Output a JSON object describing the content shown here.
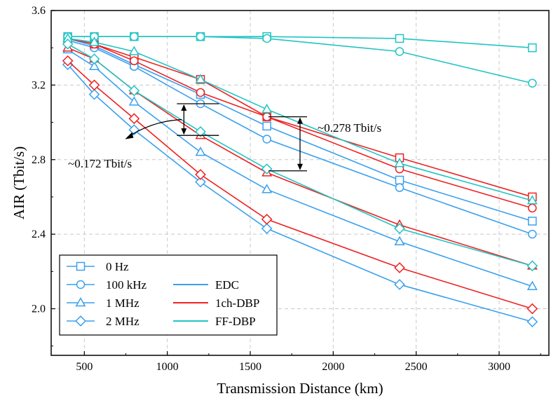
{
  "chart_data": {
    "type": "line",
    "xlabel": "Transmission Distance (km)",
    "ylabel": "AIR (Tbit/s)",
    "xlim": [
      300,
      3300
    ],
    "ylim": [
      1.75,
      3.6
    ],
    "xticks": [
      500,
      1000,
      1500,
      2000,
      2500,
      3000
    ],
    "yticks": [
      2.0,
      2.4,
      2.8,
      3.2,
      3.6
    ],
    "xtick_labels": [
      "500",
      "1000",
      "1500",
      "2000",
      "2500",
      "3000"
    ],
    "ytick_labels": [
      "2.0",
      "2.4",
      "2.8",
      "3.2",
      "3.6"
    ],
    "grid": true,
    "x": [
      400,
      560,
      800,
      1200,
      1600,
      2400,
      3200
    ],
    "colors": {
      "EDC": "#3aa0ee",
      "1ch-DBP": "#ee2222",
      "FF-DBP": "#22c4c4"
    },
    "series": [
      {
        "linewidth": "EDC",
        "marker": "0 Hz",
        "values": [
          3.45,
          3.41,
          3.31,
          3.15,
          2.98,
          2.69,
          2.47
        ]
      },
      {
        "linewidth": "EDC",
        "marker": "100 kHz",
        "values": [
          3.44,
          3.4,
          3.3,
          3.1,
          2.91,
          2.65,
          2.4
        ]
      },
      {
        "linewidth": "EDC",
        "marker": "1 MHz",
        "values": [
          3.39,
          3.3,
          3.11,
          2.84,
          2.64,
          2.36,
          2.12
        ]
      },
      {
        "linewidth": "EDC",
        "marker": "2 MHz",
        "values": [
          3.31,
          3.15,
          2.96,
          2.68,
          2.43,
          2.13,
          1.93
        ]
      },
      {
        "linewidth": "1ch-DBP",
        "marker": "0 Hz",
        "values": [
          3.45,
          3.42,
          3.35,
          3.23,
          3.03,
          2.81,
          2.6
        ]
      },
      {
        "linewidth": "1ch-DBP",
        "marker": "100 kHz",
        "values": [
          3.45,
          3.42,
          3.33,
          3.16,
          3.03,
          2.75,
          2.54
        ]
      },
      {
        "linewidth": "1ch-DBP",
        "marker": "1 MHz",
        "values": [
          3.4,
          3.34,
          3.17,
          2.93,
          2.73,
          2.45,
          2.23
        ]
      },
      {
        "linewidth": "1ch-DBP",
        "marker": "2 MHz",
        "values": [
          3.33,
          3.2,
          3.02,
          2.72,
          2.48,
          2.22,
          2.0
        ]
      },
      {
        "linewidth": "FF-DBP",
        "marker": "0 Hz",
        "values": [
          3.46,
          3.46,
          3.46,
          3.46,
          3.46,
          3.45,
          3.4
        ]
      },
      {
        "linewidth": "FF-DBP",
        "marker": "100 kHz",
        "values": [
          3.46,
          3.46,
          3.46,
          3.46,
          3.45,
          3.38,
          3.21
        ]
      },
      {
        "linewidth": "FF-DBP",
        "marker": "1 MHz",
        "values": [
          3.45,
          3.43,
          3.38,
          3.23,
          3.07,
          2.78,
          2.58
        ]
      },
      {
        "linewidth": "FF-DBP",
        "marker": "2 MHz",
        "values": [
          3.42,
          3.34,
          3.17,
          2.95,
          2.75,
          2.43,
          2.23
        ]
      }
    ],
    "legend": {
      "placement": "bottom-left",
      "markers": [
        {
          "label": "0 Hz",
          "shape": "square"
        },
        {
          "label": "100 kHz",
          "shape": "circle"
        },
        {
          "label": "1 MHz",
          "shape": "triangle"
        },
        {
          "label": "2 MHz",
          "shape": "diamond"
        }
      ],
      "lines": [
        {
          "label": "EDC",
          "color": "#3aa0ee"
        },
        {
          "label": "1ch-DBP",
          "color": "#ee2222"
        },
        {
          "label": "FF-DBP",
          "color": "#22c4c4"
        }
      ]
    },
    "annotations": [
      {
        "text": "~0.278 Tbit/s",
        "x1": 1800,
        "y_top": 3.03,
        "y_bottom": 2.74
      },
      {
        "text": "~0.172 Tbit/s",
        "x1": 1100,
        "y_top": 3.1,
        "y_bottom": 2.93
      }
    ]
  }
}
